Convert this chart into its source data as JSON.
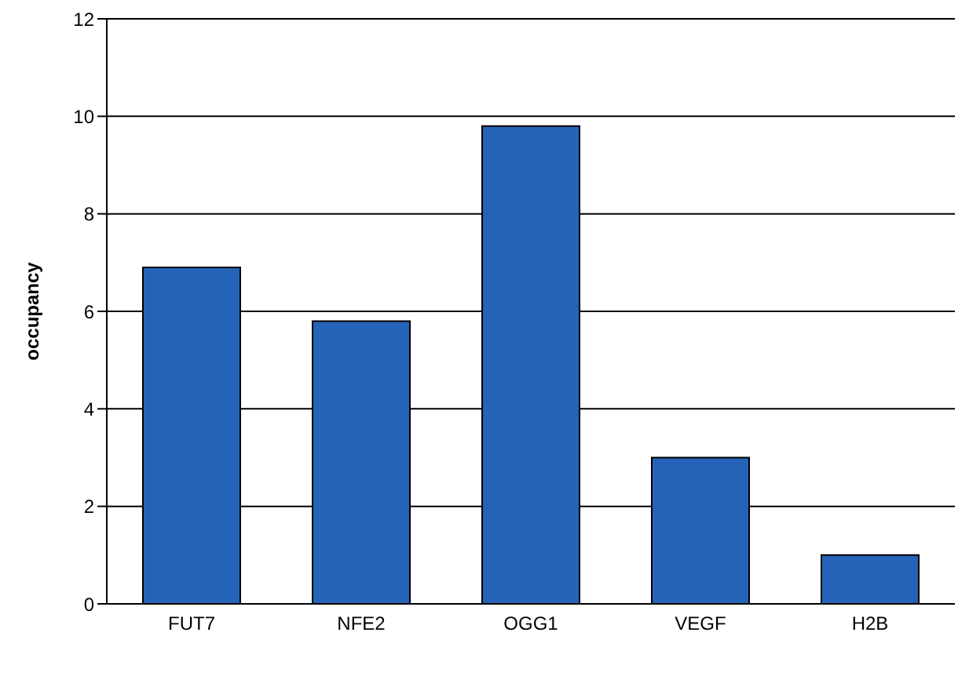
{
  "chart_data": {
    "type": "bar",
    "ylabel": "occupancy",
    "categories": [
      "FUT7",
      "NFE2",
      "OGG1",
      "VEGF",
      "H2B"
    ],
    "values": [
      6.9,
      5.8,
      9.8,
      3.0,
      1.0
    ],
    "color": "#2563b8",
    "ylim": [
      0,
      12
    ],
    "yticks": [
      0,
      2,
      4,
      6,
      8,
      10,
      12
    ],
    "grid": "y",
    "legend": false
  }
}
